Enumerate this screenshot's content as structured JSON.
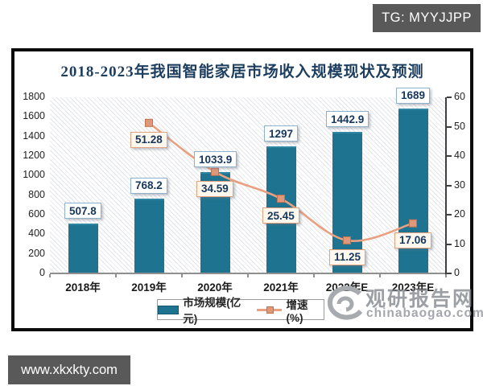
{
  "overlays": {
    "tg_label": "TG: MYYJJPP",
    "url_label": "www.xkxkty.com"
  },
  "watermark": {
    "brand": "观研报告网",
    "site": "chinabaogao.com"
  },
  "chart_data": {
    "type": "combo-bar-line",
    "title": "2018-2023年我国智能家居市场收入规模现状及预测",
    "categories": [
      "2018年",
      "2019年",
      "2020年",
      "2021年",
      "2022年E",
      "2023年E"
    ],
    "series": [
      {
        "name": "市场规模(亿元)",
        "type": "bar",
        "axis": "left",
        "values": [
          507.8,
          768.2,
          1033.9,
          1297,
          1442.9,
          1689
        ]
      },
      {
        "name": "增速(%)",
        "type": "line",
        "axis": "right",
        "values": [
          null,
          51.28,
          34.59,
          25.45,
          11.25,
          17.06
        ]
      }
    ],
    "left_axis": {
      "min": 0,
      "max": 1800,
      "step": 200
    },
    "right_axis": {
      "min": 0,
      "max": 60,
      "step": 10
    },
    "legend_position": "bottom",
    "grid": "hatched-plot-background",
    "colors": {
      "bar": "#1d7390",
      "line": "#e8a081",
      "marker_fill": "#e0987a",
      "marker_border": "#bf7350",
      "title_text": "#1d3e5e",
      "value_text": "#16375e",
      "bar_label_border": "#8fb2cc",
      "line_label_border": "#e2a17f"
    }
  }
}
